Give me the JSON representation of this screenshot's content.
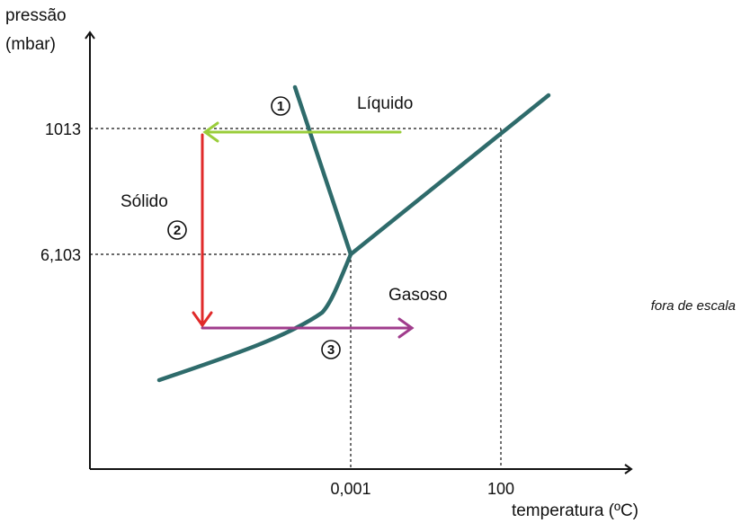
{
  "axes": {
    "y_label_line1": "pressão",
    "y_label_line2": "(mbar)",
    "x_label": "temperatura (ºC)",
    "y_ticks": [
      "1013",
      "6,103"
    ],
    "x_ticks": [
      "0,001",
      "100"
    ]
  },
  "regions": {
    "liquid": "Líquido",
    "solid": "Sólido",
    "gas": "Gasoso"
  },
  "steps": [
    "1",
    "2",
    "3"
  ],
  "note": "fora de escala",
  "colors": {
    "phase_curve": "#2e6b6b",
    "arrow_1": "#9acd3a",
    "arrow_2": "#e02a2a",
    "arrow_3": "#a03c8c",
    "axis": "#111111"
  }
}
